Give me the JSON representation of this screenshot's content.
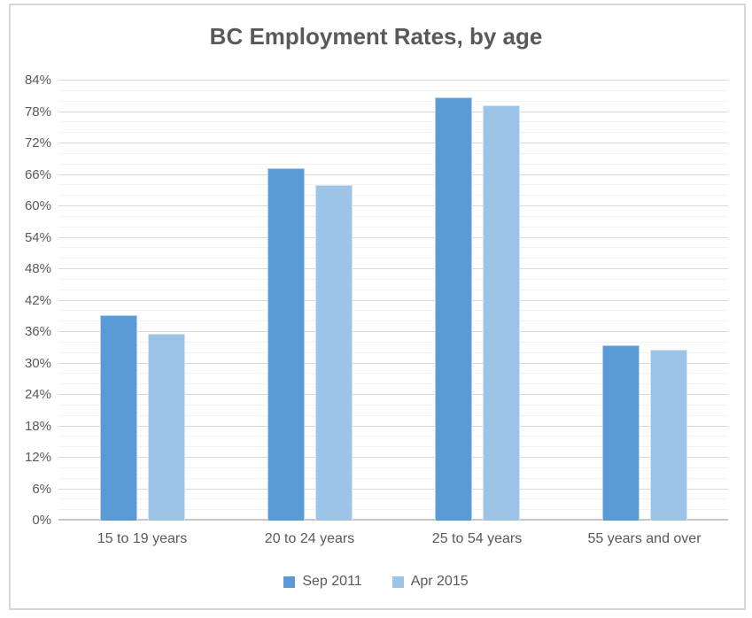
{
  "chart_data": {
    "type": "bar",
    "title": "BC Employment Rates, by age",
    "categories": [
      "15 to 19 years",
      "20 to 24 years",
      "25 to 54 years",
      "55 years and over"
    ],
    "series": [
      {
        "name": "Sep 2011",
        "color": "#5B9BD5",
        "values": [
          39.2,
          67.2,
          80.8,
          33.5
        ]
      },
      {
        "name": "Apr 2015",
        "color": "#9DC3E6",
        "values": [
          35.7,
          64.0,
          79.3,
          32.6
        ]
      }
    ],
    "xlabel": "",
    "ylabel": "",
    "ylim": [
      0,
      84
    ],
    "ytick_major_step": 6,
    "ytick_minor_step": 2,
    "ytick_labels": [
      "84%",
      "78%",
      "72%",
      "66%",
      "60%",
      "54%",
      "48%",
      "42%",
      "36%",
      "30%",
      "24%",
      "18%",
      "12%",
      "6%",
      "0%"
    ],
    "grid": true,
    "legend_position": "bottom"
  },
  "colors": {
    "frame_border": "#D7D7D7",
    "major_gridline": "#D9D9D9",
    "minor_gridline": "#F2F2F2",
    "axis_baseline": "#C6C6C6",
    "text": "#595959",
    "background": "#FFFFFF"
  }
}
